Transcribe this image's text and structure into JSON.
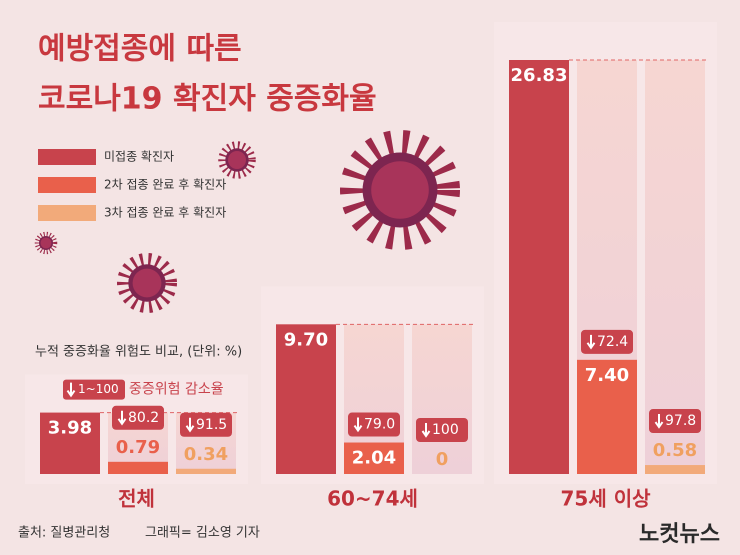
{
  "chart_data": {
    "type": "bar",
    "title": [
      "예방접종에 따른",
      "코로나19 확진자 중증화율"
    ],
    "subtitle": "누적 중증화율 위험도 비교, (단위: %)",
    "reduction_key": {
      "label": "1~100",
      "text": "중증위험 감소율"
    },
    "categories": [
      "전체",
      "60~74세",
      "75세 이상"
    ],
    "series": [
      {
        "name": "미접종 확진자",
        "color": "#c8434c",
        "values": [
          3.98,
          9.7,
          26.83
        ],
        "value_labels": [
          "3.98",
          "9.70",
          "26.83"
        ]
      },
      {
        "name": "2차 접종 완료 후 확진자",
        "color": "#e9604b",
        "values": [
          0.79,
          2.04,
          7.4
        ],
        "value_labels": [
          "0.79",
          "2.04",
          "7.40"
        ],
        "reductions": [
          80.2,
          79.0,
          72.4
        ],
        "reduction_labels": [
          "80.2",
          "79.0",
          "72.4"
        ]
      },
      {
        "name": "3차 접종 완료 후 확진자",
        "color": "#f2aa7a",
        "values": [
          0.34,
          0,
          0.58
        ],
        "value_labels": [
          "0.34",
          "0",
          "0.58"
        ],
        "reductions": [
          91.5,
          100,
          97.8
        ],
        "reduction_labels": [
          "91.5",
          "100",
          "97.8"
        ]
      }
    ],
    "source": "출처: 질병관리청",
    "credit": "그래픽= 김소영 기자",
    "logo": "노컷뉴스"
  }
}
